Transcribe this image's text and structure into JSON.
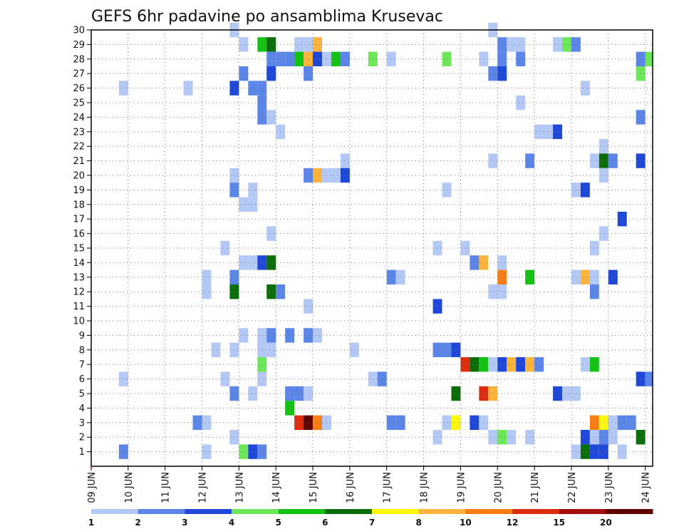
{
  "chart_data": {
    "type": "heatmap",
    "title": "GEFS 6hr padavine po ansamblima Krusevac",
    "xlabel": "",
    "ylabel": "",
    "x_tick_labels": [
      "09 JUN",
      "10 JUN",
      "11 JUN",
      "12 JUN",
      "13 JUN",
      "14 JUN",
      "15 JUN",
      "16 JUN",
      "17 JUN",
      "18 JUN",
      "19 JUN",
      "20 JUN",
      "21 JUN",
      "22 JUN",
      "23 JUN",
      "24 JUN"
    ],
    "y_tick_labels": [
      "1",
      "2",
      "3",
      "4",
      "5",
      "6",
      "7",
      "8",
      "9",
      "10",
      "11",
      "12",
      "13",
      "14",
      "15",
      "16",
      "17",
      "18",
      "19",
      "20",
      "21",
      "22",
      "23",
      "24",
      "25",
      "26",
      "27",
      "28",
      "29",
      "30"
    ],
    "xlim_days": [
      0,
      15.2
    ],
    "ylim_members": [
      0,
      30
    ],
    "grid": true,
    "legend": {
      "placement": "bottom",
      "labels": [
        "1",
        "2",
        "3",
        "4",
        "5",
        "6",
        "7",
        "8",
        "10",
        "12",
        "15",
        "20"
      ],
      "bin_colors": [
        "#b3c8f4",
        "#5b86e8",
        "#1f48d9",
        "#6ee65a",
        "#14c214",
        "#0b6e0b",
        "#fffa0a",
        "#fdb43c",
        "#f77d14",
        "#dc2d10",
        "#a50e0e",
        "#600000"
      ]
    },
    "bin_thresholds_mm": [
      1,
      2,
      3,
      4,
      5,
      6,
      7,
      8,
      10,
      12,
      15,
      20
    ],
    "cell_width_days": 0.25,
    "cells": [
      {
        "member": 30,
        "day": 3.75,
        "bin": 0
      },
      {
        "member": 30,
        "day": 10.75,
        "bin": 0
      },
      {
        "member": 29,
        "day": 4.0,
        "bin": 0
      },
      {
        "member": 29,
        "day": 4.5,
        "bin": 4
      },
      {
        "member": 29,
        "day": 4.75,
        "bin": 5
      },
      {
        "member": 29,
        "day": 5.5,
        "bin": 0
      },
      {
        "member": 29,
        "day": 5.75,
        "bin": 0
      },
      {
        "member": 29,
        "day": 6.0,
        "bin": 7
      },
      {
        "member": 29,
        "day": 11.0,
        "bin": 1
      },
      {
        "member": 29,
        "day": 11.25,
        "bin": 0
      },
      {
        "member": 29,
        "day": 11.5,
        "bin": 0
      },
      {
        "member": 29,
        "day": 12.5,
        "bin": 0
      },
      {
        "member": 29,
        "day": 12.75,
        "bin": 3
      },
      {
        "member": 29,
        "day": 13.0,
        "bin": 1
      },
      {
        "member": 28,
        "day": 4.75,
        "bin": 1
      },
      {
        "member": 28,
        "day": 5.0,
        "bin": 1
      },
      {
        "member": 28,
        "day": 5.25,
        "bin": 1
      },
      {
        "member": 28,
        "day": 5.5,
        "bin": 4
      },
      {
        "member": 28,
        "day": 5.75,
        "bin": 7
      },
      {
        "member": 28,
        "day": 6.0,
        "bin": 2
      },
      {
        "member": 28,
        "day": 6.25,
        "bin": 0
      },
      {
        "member": 28,
        "day": 6.5,
        "bin": 4
      },
      {
        "member": 28,
        "day": 6.75,
        "bin": 1
      },
      {
        "member": 28,
        "day": 7.5,
        "bin": 3
      },
      {
        "member": 28,
        "day": 8.0,
        "bin": 0
      },
      {
        "member": 28,
        "day": 9.5,
        "bin": 3
      },
      {
        "member": 28,
        "day": 10.5,
        "bin": 0
      },
      {
        "member": 28,
        "day": 11.0,
        "bin": 1
      },
      {
        "member": 28,
        "day": 11.5,
        "bin": 1
      },
      {
        "member": 28,
        "day": 14.75,
        "bin": 1
      },
      {
        "member": 28,
        "day": 15.0,
        "bin": 3
      },
      {
        "member": 27,
        "day": 4.0,
        "bin": 1
      },
      {
        "member": 27,
        "day": 4.75,
        "bin": 2
      },
      {
        "member": 27,
        "day": 5.75,
        "bin": 1
      },
      {
        "member": 27,
        "day": 10.75,
        "bin": 1
      },
      {
        "member": 27,
        "day": 11.0,
        "bin": 2
      },
      {
        "member": 27,
        "day": 14.75,
        "bin": 3
      },
      {
        "member": 26,
        "day": 0.75,
        "bin": 0
      },
      {
        "member": 26,
        "day": 2.5,
        "bin": 0
      },
      {
        "member": 26,
        "day": 3.75,
        "bin": 2
      },
      {
        "member": 26,
        "day": 4.25,
        "bin": 1
      },
      {
        "member": 26,
        "day": 4.5,
        "bin": 1
      },
      {
        "member": 26,
        "day": 13.25,
        "bin": 0
      },
      {
        "member": 25,
        "day": 4.5,
        "bin": 1
      },
      {
        "member": 25,
        "day": 11.5,
        "bin": 0
      },
      {
        "member": 24,
        "day": 4.5,
        "bin": 1
      },
      {
        "member": 24,
        "day": 4.75,
        "bin": 0
      },
      {
        "member": 24,
        "day": 14.75,
        "bin": 1
      },
      {
        "member": 23,
        "day": 5.0,
        "bin": 0
      },
      {
        "member": 23,
        "day": 12.0,
        "bin": 0
      },
      {
        "member": 23,
        "day": 12.25,
        "bin": 0
      },
      {
        "member": 23,
        "day": 12.5,
        "bin": 2
      },
      {
        "member": 22,
        "day": 13.75,
        "bin": 0
      },
      {
        "member": 21,
        "day": 6.75,
        "bin": 0
      },
      {
        "member": 21,
        "day": 10.75,
        "bin": 0
      },
      {
        "member": 21,
        "day": 11.75,
        "bin": 1
      },
      {
        "member": 21,
        "day": 13.5,
        "bin": 0
      },
      {
        "member": 21,
        "day": 13.75,
        "bin": 5
      },
      {
        "member": 21,
        "day": 14.0,
        "bin": 1
      },
      {
        "member": 21,
        "day": 14.75,
        "bin": 2
      },
      {
        "member": 20,
        "day": 3.75,
        "bin": 0
      },
      {
        "member": 20,
        "day": 5.75,
        "bin": 1
      },
      {
        "member": 20,
        "day": 6.0,
        "bin": 7
      },
      {
        "member": 20,
        "day": 6.25,
        "bin": 0
      },
      {
        "member": 20,
        "day": 6.5,
        "bin": 0
      },
      {
        "member": 20,
        "day": 6.75,
        "bin": 2
      },
      {
        "member": 20,
        "day": 13.75,
        "bin": 0
      },
      {
        "member": 19,
        "day": 3.75,
        "bin": 1
      },
      {
        "member": 19,
        "day": 4.25,
        "bin": 0
      },
      {
        "member": 19,
        "day": 9.5,
        "bin": 0
      },
      {
        "member": 19,
        "day": 13.0,
        "bin": 0
      },
      {
        "member": 19,
        "day": 13.25,
        "bin": 2
      },
      {
        "member": 18,
        "day": 4.0,
        "bin": 0
      },
      {
        "member": 18,
        "day": 4.25,
        "bin": 0
      },
      {
        "member": 17,
        "day": 14.25,
        "bin": 2
      },
      {
        "member": 16,
        "day": 4.75,
        "bin": 0
      },
      {
        "member": 16,
        "day": 13.75,
        "bin": 0
      },
      {
        "member": 15,
        "day": 3.5,
        "bin": 0
      },
      {
        "member": 15,
        "day": 9.25,
        "bin": 0
      },
      {
        "member": 15,
        "day": 10.0,
        "bin": 0
      },
      {
        "member": 15,
        "day": 13.5,
        "bin": 0
      },
      {
        "member": 14,
        "day": 4.0,
        "bin": 0
      },
      {
        "member": 14,
        "day": 4.25,
        "bin": 0
      },
      {
        "member": 14,
        "day": 4.5,
        "bin": 2
      },
      {
        "member": 14,
        "day": 4.75,
        "bin": 5
      },
      {
        "member": 14,
        "day": 10.25,
        "bin": 1
      },
      {
        "member": 14,
        "day": 10.5,
        "bin": 7
      },
      {
        "member": 14,
        "day": 11.0,
        "bin": 0
      },
      {
        "member": 13,
        "day": 3.0,
        "bin": 0
      },
      {
        "member": 13,
        "day": 3.75,
        "bin": 1
      },
      {
        "member": 13,
        "day": 8.0,
        "bin": 1
      },
      {
        "member": 13,
        "day": 8.25,
        "bin": 0
      },
      {
        "member": 13,
        "day": 11.0,
        "bin": 8
      },
      {
        "member": 13,
        "day": 11.75,
        "bin": 4
      },
      {
        "member": 13,
        "day": 13.0,
        "bin": 0
      },
      {
        "member": 13,
        "day": 13.25,
        "bin": 7
      },
      {
        "member": 13,
        "day": 13.5,
        "bin": 0
      },
      {
        "member": 13,
        "day": 14.0,
        "bin": 2
      },
      {
        "member": 12,
        "day": 3.0,
        "bin": 0
      },
      {
        "member": 12,
        "day": 3.75,
        "bin": 5
      },
      {
        "member": 12,
        "day": 4.75,
        "bin": 5
      },
      {
        "member": 12,
        "day": 5.0,
        "bin": 1
      },
      {
        "member": 12,
        "day": 10.75,
        "bin": 0
      },
      {
        "member": 12,
        "day": 11.0,
        "bin": 0
      },
      {
        "member": 12,
        "day": 13.5,
        "bin": 1
      },
      {
        "member": 11,
        "day": 5.75,
        "bin": 0
      },
      {
        "member": 11,
        "day": 9.25,
        "bin": 2
      },
      {
        "member": 9,
        "day": 4.0,
        "bin": 0
      },
      {
        "member": 9,
        "day": 4.5,
        "bin": 0
      },
      {
        "member": 9,
        "day": 4.75,
        "bin": 1
      },
      {
        "member": 9,
        "day": 5.25,
        "bin": 1
      },
      {
        "member": 9,
        "day": 5.75,
        "bin": 1
      },
      {
        "member": 9,
        "day": 6.0,
        "bin": 0
      },
      {
        "member": 8,
        "day": 3.25,
        "bin": 0
      },
      {
        "member": 8,
        "day": 3.75,
        "bin": 0
      },
      {
        "member": 8,
        "day": 4.5,
        "bin": 0
      },
      {
        "member": 8,
        "day": 4.75,
        "bin": 0
      },
      {
        "member": 8,
        "day": 7.0,
        "bin": 0
      },
      {
        "member": 8,
        "day": 9.25,
        "bin": 1
      },
      {
        "member": 8,
        "day": 9.5,
        "bin": 1
      },
      {
        "member": 8,
        "day": 9.75,
        "bin": 2
      },
      {
        "member": 7,
        "day": 4.5,
        "bin": 3
      },
      {
        "member": 7,
        "day": 10.0,
        "bin": 9
      },
      {
        "member": 7,
        "day": 10.25,
        "bin": 5
      },
      {
        "member": 7,
        "day": 10.5,
        "bin": 4
      },
      {
        "member": 7,
        "day": 10.75,
        "bin": 0
      },
      {
        "member": 7,
        "day": 11.0,
        "bin": 2
      },
      {
        "member": 7,
        "day": 11.25,
        "bin": 7
      },
      {
        "member": 7,
        "day": 11.5,
        "bin": 2
      },
      {
        "member": 7,
        "day": 11.75,
        "bin": 7
      },
      {
        "member": 7,
        "day": 12.0,
        "bin": 1
      },
      {
        "member": 7,
        "day": 13.25,
        "bin": 0
      },
      {
        "member": 7,
        "day": 13.5,
        "bin": 4
      },
      {
        "member": 6,
        "day": 0.75,
        "bin": 0
      },
      {
        "member": 6,
        "day": 3.5,
        "bin": 0
      },
      {
        "member": 6,
        "day": 4.5,
        "bin": 0
      },
      {
        "member": 6,
        "day": 7.5,
        "bin": 0
      },
      {
        "member": 6,
        "day": 7.75,
        "bin": 1
      },
      {
        "member": 6,
        "day": 14.75,
        "bin": 2
      },
      {
        "member": 6,
        "day": 15.0,
        "bin": 1
      },
      {
        "member": 5,
        "day": 3.75,
        "bin": 1
      },
      {
        "member": 5,
        "day": 4.25,
        "bin": 0
      },
      {
        "member": 5,
        "day": 5.25,
        "bin": 1
      },
      {
        "member": 5,
        "day": 5.5,
        "bin": 1
      },
      {
        "member": 5,
        "day": 5.75,
        "bin": 0
      },
      {
        "member": 5,
        "day": 9.75,
        "bin": 5
      },
      {
        "member": 5,
        "day": 10.5,
        "bin": 9
      },
      {
        "member": 5,
        "day": 10.75,
        "bin": 7
      },
      {
        "member": 5,
        "day": 12.5,
        "bin": 2
      },
      {
        "member": 5,
        "day": 12.75,
        "bin": 0
      },
      {
        "member": 5,
        "day": 13.0,
        "bin": 0
      },
      {
        "member": 4,
        "day": 5.25,
        "bin": 4
      },
      {
        "member": 3,
        "day": 2.75,
        "bin": 1
      },
      {
        "member": 3,
        "day": 3.0,
        "bin": 0
      },
      {
        "member": 3,
        "day": 5.5,
        "bin": 9
      },
      {
        "member": 3,
        "day": 5.75,
        "bin": 11
      },
      {
        "member": 3,
        "day": 6.0,
        "bin": 8
      },
      {
        "member": 3,
        "day": 6.25,
        "bin": 0
      },
      {
        "member": 3,
        "day": 8.0,
        "bin": 1
      },
      {
        "member": 3,
        "day": 8.25,
        "bin": 1
      },
      {
        "member": 3,
        "day": 9.5,
        "bin": 0
      },
      {
        "member": 3,
        "day": 9.75,
        "bin": 6
      },
      {
        "member": 3,
        "day": 10.25,
        "bin": 2
      },
      {
        "member": 3,
        "day": 10.5,
        "bin": 0
      },
      {
        "member": 3,
        "day": 13.5,
        "bin": 8
      },
      {
        "member": 3,
        "day": 13.75,
        "bin": 6
      },
      {
        "member": 3,
        "day": 14.0,
        "bin": 0
      },
      {
        "member": 3,
        "day": 14.25,
        "bin": 1
      },
      {
        "member": 3,
        "day": 14.5,
        "bin": 1
      },
      {
        "member": 2,
        "day": 3.75,
        "bin": 0
      },
      {
        "member": 2,
        "day": 9.25,
        "bin": 0
      },
      {
        "member": 2,
        "day": 10.75,
        "bin": 0
      },
      {
        "member": 2,
        "day": 11.0,
        "bin": 3
      },
      {
        "member": 2,
        "day": 11.25,
        "bin": 0
      },
      {
        "member": 2,
        "day": 11.75,
        "bin": 0
      },
      {
        "member": 2,
        "day": 13.25,
        "bin": 2
      },
      {
        "member": 2,
        "day": 13.5,
        "bin": 0
      },
      {
        "member": 2,
        "day": 13.75,
        "bin": 1
      },
      {
        "member": 2,
        "day": 14.0,
        "bin": 0
      },
      {
        "member": 2,
        "day": 14.75,
        "bin": 5
      },
      {
        "member": 1,
        "day": 0.75,
        "bin": 1
      },
      {
        "member": 1,
        "day": 3.0,
        "bin": 0
      },
      {
        "member": 1,
        "day": 4.0,
        "bin": 3
      },
      {
        "member": 1,
        "day": 4.25,
        "bin": 2
      },
      {
        "member": 1,
        "day": 4.5,
        "bin": 1
      },
      {
        "member": 1,
        "day": 13.0,
        "bin": 0
      },
      {
        "member": 1,
        "day": 13.25,
        "bin": 5
      },
      {
        "member": 1,
        "day": 13.5,
        "bin": 2
      },
      {
        "member": 1,
        "day": 13.75,
        "bin": 2
      },
      {
        "member": 1,
        "day": 14.25,
        "bin": 0
      }
    ]
  }
}
